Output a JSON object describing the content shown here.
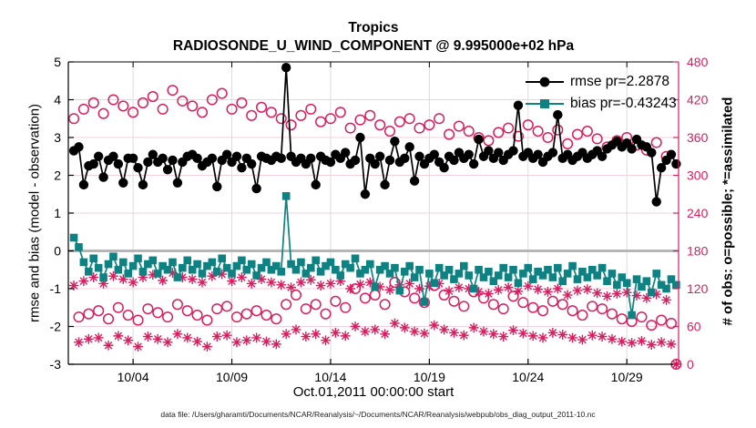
{
  "figure": {
    "caption": "data file: /Users/gharamti/Documents/NCAR/Reanalysis/~/Documents/NCAR/Reanalysis/webpub/obs_diag_output_2011-10.nc"
  },
  "colors": {
    "rmse": "#000000",
    "bias": "#0e8282",
    "obs": "#d81e5f",
    "grid_h": "#f4d0dd",
    "grid_v": "#dcdcdc",
    "zero_line": "#b0b0b0",
    "spine_left": "#000000",
    "spine_right": "#d81e5f"
  },
  "chart_data": {
    "type": "line",
    "title": "Tropics",
    "subtitle": "RADIOSONDE_U_WIND_COMPONENT @ 9.995000e+02 hPa",
    "xlabel": "Oct.01,2011 00:00:00 start",
    "ylabel_left": "rmse and bias (model - observation)",
    "ylabel_right": "# of obs: o=possible; *=assimilated",
    "ylim_left": [
      -3,
      5
    ],
    "ylim_right": [
      0,
      480
    ],
    "xlim_days": [
      -0.28,
      30.62
    ],
    "x_start_day": 0,
    "x_step_days": 0.25,
    "x_start_label": "Oct 1, 2011 00:00 UTC",
    "grid": true,
    "zero_line": true,
    "legend_position": "top-right",
    "xticks": [
      {
        "day": 3,
        "label": "10/04"
      },
      {
        "day": 8,
        "label": "10/09"
      },
      {
        "day": 13,
        "label": "10/14"
      },
      {
        "day": 18,
        "label": "10/19"
      },
      {
        "day": 23,
        "label": "10/24"
      },
      {
        "day": 28,
        "label": "10/29"
      }
    ],
    "yticks_left": [
      -3,
      -2,
      -1,
      0,
      1,
      2,
      3,
      4,
      5
    ],
    "yticks_right": [
      0,
      60,
      120,
      180,
      240,
      300,
      360,
      420,
      480
    ],
    "series": [
      {
        "name": "rmse pr=2.2878",
        "style": "line+circle",
        "axis": "left",
        "color": "#000000",
        "values": [
          2.65,
          2.75,
          1.75,
          2.25,
          2.3,
          2.5,
          1.95,
          2.4,
          2.5,
          2.3,
          1.8,
          2.45,
          2.45,
          2.2,
          1.75,
          2.35,
          2.55,
          2.35,
          2.45,
          2.15,
          2.4,
          1.8,
          2.35,
          2.5,
          2.55,
          2.45,
          2.25,
          2.35,
          2.45,
          1.7,
          2.4,
          2.55,
          2.35,
          2.5,
          2.2,
          2.45,
          2.3,
          1.65,
          2.5,
          2.45,
          2.4,
          2.5,
          2.45,
          4.85,
          2.5,
          2.35,
          2.45,
          2.3,
          2.45,
          1.75,
          2.5,
          2.4,
          2.35,
          2.55,
          2.45,
          2.6,
          2.3,
          2.4,
          3.0,
          1.5,
          2.45,
          2.3,
          2.5,
          1.75,
          2.4,
          2.9,
          2.35,
          2.45,
          2.75,
          1.85,
          2.5,
          2.3,
          2.45,
          2.55,
          2.35,
          2.2,
          2.5,
          2.4,
          2.6,
          2.45,
          2.55,
          2.3,
          2.95,
          2.5,
          2.65,
          2.45,
          2.6,
          2.4,
          2.55,
          2.65,
          3.85,
          2.5,
          2.6,
          2.45,
          2.55,
          2.35,
          2.5,
          2.6,
          3.6,
          2.45,
          2.55,
          2.4,
          2.5,
          2.6,
          2.45,
          2.55,
          2.65,
          2.5,
          2.7,
          2.8,
          2.9,
          2.75,
          2.85,
          2.7,
          2.95,
          2.8,
          2.75,
          2.6,
          1.3,
          2.2,
          2.4,
          2.55,
          2.3
        ]
      },
      {
        "name": "bias pr=-0.43243",
        "style": "line+square",
        "axis": "left",
        "color": "#0e8282",
        "values": [
          0.35,
          0.1,
          -0.3,
          -0.55,
          -0.2,
          -0.45,
          -0.7,
          -0.35,
          -0.15,
          -0.5,
          -0.3,
          -0.6,
          -0.4,
          -0.2,
          -0.55,
          -0.35,
          -0.25,
          -0.6,
          -0.4,
          -0.5,
          -0.3,
          -0.7,
          -0.45,
          -0.25,
          -0.5,
          -0.35,
          -0.6,
          -0.4,
          -0.3,
          -0.55,
          -0.2,
          -0.45,
          -0.6,
          -0.4,
          -0.25,
          -0.5,
          -0.35,
          -0.65,
          -0.45,
          -0.3,
          -0.5,
          -0.4,
          -0.55,
          1.45,
          -0.35,
          -0.5,
          -0.3,
          -0.6,
          -0.45,
          -0.25,
          -0.55,
          -0.4,
          -0.3,
          -0.5,
          -0.65,
          -0.35,
          -0.45,
          -0.2,
          -0.6,
          -0.5,
          -0.35,
          -0.95,
          -0.5,
          -0.4,
          -0.6,
          -0.45,
          -1.05,
          -0.55,
          -0.4,
          -0.7,
          -0.5,
          -1.35,
          -0.6,
          -0.85,
          -0.45,
          -0.65,
          -0.5,
          -0.75,
          -0.6,
          -0.4,
          -0.65,
          -1.0,
          -0.5,
          -0.7,
          -0.55,
          -0.8,
          -0.65,
          -0.45,
          -0.7,
          -0.5,
          -0.85,
          -0.6,
          -0.45,
          -0.75,
          -0.55,
          -0.65,
          -0.5,
          -0.7,
          -0.45,
          -0.8,
          -0.6,
          -0.4,
          -0.75,
          -0.55,
          -0.7,
          -0.5,
          -0.65,
          -0.45,
          -0.8,
          -0.6,
          -0.9,
          -0.7,
          -0.85,
          -1.7,
          -0.75,
          -0.95,
          -0.8,
          -1.1,
          -0.6,
          -0.9,
          -1.0,
          -0.75,
          -0.9
        ]
      },
      {
        "name": "possible",
        "style": "scatter-circle",
        "axis": "right",
        "color": "#d81e5f",
        "values": [
          390,
          75,
          405,
          80,
          415,
          85,
          398,
          72,
          420,
          90,
          410,
          78,
          400,
          70,
          415,
          88,
          425,
          82,
          405,
          75,
          435,
          95,
          418,
          85,
          410,
          78,
          400,
          70,
          420,
          88,
          430,
          92,
          405,
          75,
          415,
          80,
          395,
          85,
          408,
          78,
          400,
          72,
          390,
          95,
          380,
          110,
          395,
          88,
          405,
          95,
          385,
          80,
          390,
          100,
          400,
          90,
          375,
          120,
          388,
          105,
          395,
          110,
          380,
          95,
          370,
          130,
          385,
          115,
          390,
          105,
          375,
          98,
          380,
          125,
          390,
          110,
          365,
          100,
          378,
          92,
          370,
          115,
          360,
          105,
          355,
          95,
          368,
          88,
          375,
          108,
          362,
          98,
          380,
          90,
          370,
          85,
          360,
          100,
          372,
          95,
          350,
          85,
          365,
          78,
          370,
          92,
          358,
          88,
          345,
          80,
          355,
          72,
          360,
          68,
          348,
          75,
          340,
          62,
          352,
          70,
          330,
          65,
          0
        ]
      },
      {
        "name": "assimilated",
        "style": "scatter-asterisk",
        "axis": "right",
        "color": "#d81e5f",
        "values": [
          125,
          35,
          132,
          40,
          138,
          42,
          128,
          30,
          140,
          45,
          135,
          38,
          130,
          28,
          138,
          44,
          142,
          40,
          133,
          35,
          145,
          48,
          138,
          42,
          135,
          36,
          130,
          28,
          140,
          44,
          143,
          46,
          132,
          35,
          138,
          38,
          128,
          42,
          135,
          36,
          130,
          32,
          126,
          48,
          122,
          55,
          130,
          44,
          134,
          48,
          125,
          38,
          128,
          50,
          132,
          45,
          120,
          60,
          127,
          52,
          130,
          55,
          123,
          48,
          118,
          65,
          126,
          58,
          128,
          52,
          120,
          49,
          124,
          62,
          128,
          55,
          116,
          50,
          122,
          46,
          120,
          58,
          115,
          52,
          112,
          48,
          118,
          44,
          122,
          54,
          116,
          49,
          124,
          45,
          119,
          42,
          115,
          50,
          120,
          47,
          110,
          42,
          117,
          39,
          119,
          46,
          113,
          44,
          108,
          40,
          112,
          36,
          114,
          34,
          109,
          37,
          105,
          31,
          111,
          35,
          102,
          32,
          0
        ]
      }
    ]
  }
}
